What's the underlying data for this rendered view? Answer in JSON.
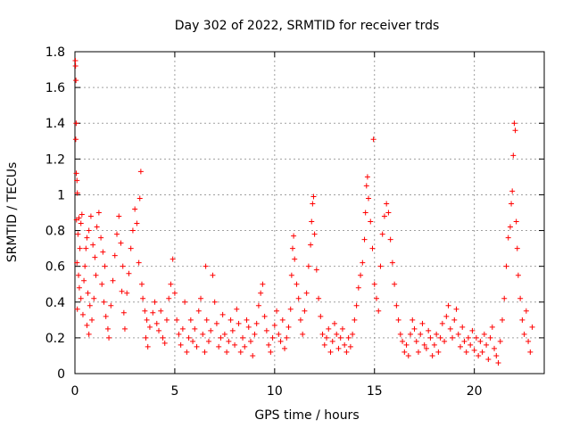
{
  "chart_data": {
    "type": "scatter",
    "title": "Day 302 of 2022, SRMTID for receiver trds",
    "xlabel": "GPS time / hours",
    "ylabel": "SRMTID / TECUs",
    "xlim": [
      0,
      23.5
    ],
    "ylim": [
      0,
      1.8
    ],
    "x_ticks": [
      0,
      5,
      10,
      15,
      20
    ],
    "x_tick_labels": [
      "0",
      "5",
      "10",
      "15",
      "20"
    ],
    "y_ticks": [
      0,
      0.2,
      0.4,
      0.6,
      0.8,
      1,
      1.2,
      1.4,
      1.6,
      1.8
    ],
    "y_tick_labels": [
      "0",
      "0.2",
      "0.4",
      "0.6",
      "0.8",
      "1",
      "1.2",
      "1.4",
      "1.6",
      "1.8"
    ],
    "grid": true,
    "marker": "+",
    "color": "#ff0000",
    "series": [
      {
        "name": "SRMTID",
        "points": [
          [
            0.02,
            1.75
          ],
          [
            0.03,
            1.72
          ],
          [
            0.05,
            1.64
          ],
          [
            0.06,
            1.4
          ],
          [
            0.04,
            1.31
          ],
          [
            0.07,
            1.12
          ],
          [
            0.1,
            1.08
          ],
          [
            0.12,
            1.01
          ],
          [
            0.08,
            0.86
          ],
          [
            0.2,
            0.87
          ],
          [
            0.3,
            0.84
          ],
          [
            0.35,
            0.89
          ],
          [
            0.15,
            0.78
          ],
          [
            0.25,
            0.7
          ],
          [
            0.1,
            0.62
          ],
          [
            0.18,
            0.55
          ],
          [
            0.22,
            0.48
          ],
          [
            0.3,
            0.42
          ],
          [
            0.12,
            0.36
          ],
          [
            0.4,
            0.33
          ],
          [
            0.45,
            0.52
          ],
          [
            0.5,
            0.6
          ],
          [
            0.55,
            0.7
          ],
          [
            0.6,
            0.76
          ],
          [
            0.7,
            0.8
          ],
          [
            0.8,
            0.88
          ],
          [
            0.9,
            0.72
          ],
          [
            1.0,
            0.65
          ],
          [
            0.65,
            0.45
          ],
          [
            0.75,
            0.38
          ],
          [
            0.6,
            0.27
          ],
          [
            0.7,
            0.22
          ],
          [
            0.85,
            0.3
          ],
          [
            0.95,
            0.42
          ],
          [
            1.05,
            0.55
          ],
          [
            1.1,
            0.82
          ],
          [
            1.2,
            0.9
          ],
          [
            1.3,
            0.76
          ],
          [
            1.4,
            0.68
          ],
          [
            1.5,
            0.6
          ],
          [
            1.35,
            0.5
          ],
          [
            1.45,
            0.4
          ],
          [
            1.55,
            0.32
          ],
          [
            1.65,
            0.25
          ],
          [
            1.7,
            0.2
          ],
          [
            1.8,
            0.38
          ],
          [
            1.9,
            0.52
          ],
          [
            2.0,
            0.66
          ],
          [
            2.1,
            0.78
          ],
          [
            2.2,
            0.88
          ],
          [
            2.3,
            0.73
          ],
          [
            2.4,
            0.6
          ],
          [
            2.35,
            0.46
          ],
          [
            2.45,
            0.34
          ],
          [
            2.5,
            0.25
          ],
          [
            2.6,
            0.45
          ],
          [
            2.7,
            0.56
          ],
          [
            2.8,
            0.7
          ],
          [
            2.9,
            0.8
          ],
          [
            3.0,
            0.92
          ],
          [
            3.1,
            0.84
          ],
          [
            3.2,
            0.62
          ],
          [
            3.25,
            0.98
          ],
          [
            3.3,
            1.13
          ],
          [
            3.35,
            0.5
          ],
          [
            3.4,
            0.42
          ],
          [
            3.5,
            0.35
          ],
          [
            3.6,
            0.3
          ],
          [
            3.55,
            0.2
          ],
          [
            3.65,
            0.15
          ],
          [
            3.75,
            0.26
          ],
          [
            3.9,
            0.34
          ],
          [
            4.0,
            0.4
          ],
          [
            4.1,
            0.28
          ],
          [
            4.2,
            0.24
          ],
          [
            4.3,
            0.35
          ],
          [
            4.4,
            0.2
          ],
          [
            4.5,
            0.17
          ],
          [
            4.6,
            0.3
          ],
          [
            4.7,
            0.42
          ],
          [
            4.8,
            0.5
          ],
          [
            4.9,
            0.64
          ],
          [
            5.0,
            0.45
          ],
          [
            5.1,
            0.3
          ],
          [
            5.2,
            0.22
          ],
          [
            5.3,
            0.16
          ],
          [
            5.4,
            0.25
          ],
          [
            5.5,
            0.4
          ],
          [
            5.6,
            0.12
          ],
          [
            5.7,
            0.2
          ],
          [
            5.8,
            0.3
          ],
          [
            5.9,
            0.18
          ],
          [
            6.0,
            0.25
          ],
          [
            6.1,
            0.15
          ],
          [
            6.2,
            0.35
          ],
          [
            6.3,
            0.42
          ],
          [
            6.4,
            0.22
          ],
          [
            6.5,
            0.12
          ],
          [
            6.55,
            0.6
          ],
          [
            6.6,
            0.3
          ],
          [
            6.7,
            0.18
          ],
          [
            6.8,
            0.24
          ],
          [
            6.9,
            0.55
          ],
          [
            7.0,
            0.4
          ],
          [
            7.1,
            0.28
          ],
          [
            7.2,
            0.15
          ],
          [
            7.3,
            0.2
          ],
          [
            7.4,
            0.33
          ],
          [
            7.5,
            0.22
          ],
          [
            7.6,
            0.12
          ],
          [
            7.7,
            0.18
          ],
          [
            7.8,
            0.3
          ],
          [
            7.9,
            0.24
          ],
          [
            8.0,
            0.16
          ],
          [
            8.1,
            0.36
          ],
          [
            8.2,
            0.28
          ],
          [
            8.3,
            0.12
          ],
          [
            8.4,
            0.2
          ],
          [
            8.5,
            0.15
          ],
          [
            8.6,
            0.3
          ],
          [
            8.7,
            0.26
          ],
          [
            8.8,
            0.18
          ],
          [
            8.9,
            0.1
          ],
          [
            9.0,
            0.22
          ],
          [
            9.1,
            0.28
          ],
          [
            9.2,
            0.38
          ],
          [
            9.3,
            0.45
          ],
          [
            9.4,
            0.5
          ],
          [
            9.5,
            0.32
          ],
          [
            9.6,
            0.24
          ],
          [
            9.7,
            0.16
          ],
          [
            9.8,
            0.12
          ],
          [
            9.9,
            0.2
          ],
          [
            10.0,
            0.27
          ],
          [
            10.1,
            0.35
          ],
          [
            10.2,
            0.22
          ],
          [
            10.3,
            0.18
          ],
          [
            10.4,
            0.3
          ],
          [
            10.5,
            0.14
          ],
          [
            10.6,
            0.2
          ],
          [
            10.7,
            0.26
          ],
          [
            10.8,
            0.36
          ],
          [
            10.85,
            0.55
          ],
          [
            10.9,
            0.7
          ],
          [
            10.95,
            0.77
          ],
          [
            11.0,
            0.64
          ],
          [
            11.1,
            0.5
          ],
          [
            11.2,
            0.42
          ],
          [
            11.3,
            0.3
          ],
          [
            11.4,
            0.22
          ],
          [
            11.5,
            0.35
          ],
          [
            11.6,
            0.45
          ],
          [
            11.7,
            0.6
          ],
          [
            11.8,
            0.72
          ],
          [
            11.85,
            0.85
          ],
          [
            11.9,
            0.95
          ],
          [
            11.95,
            0.99
          ],
          [
            12.0,
            0.78
          ],
          [
            12.1,
            0.58
          ],
          [
            12.2,
            0.42
          ],
          [
            12.3,
            0.32
          ],
          [
            12.4,
            0.22
          ],
          [
            12.5,
            0.16
          ],
          [
            12.6,
            0.2
          ],
          [
            12.7,
            0.25
          ],
          [
            12.8,
            0.12
          ],
          [
            12.9,
            0.18
          ],
          [
            13.0,
            0.28
          ],
          [
            13.1,
            0.22
          ],
          [
            13.2,
            0.14
          ],
          [
            13.3,
            0.2
          ],
          [
            13.4,
            0.25
          ],
          [
            13.5,
            0.16
          ],
          [
            13.6,
            0.12
          ],
          [
            13.7,
            0.2
          ],
          [
            13.8,
            0.15
          ],
          [
            13.9,
            0.22
          ],
          [
            14.0,
            0.3
          ],
          [
            14.1,
            0.38
          ],
          [
            14.2,
            0.48
          ],
          [
            14.3,
            0.55
          ],
          [
            14.4,
            0.62
          ],
          [
            14.5,
            0.75
          ],
          [
            14.55,
            0.9
          ],
          [
            14.6,
            1.05
          ],
          [
            14.65,
            1.1
          ],
          [
            14.7,
            0.98
          ],
          [
            14.8,
            0.85
          ],
          [
            14.9,
            0.7
          ],
          [
            14.95,
            1.31
          ],
          [
            15.0,
            0.5
          ],
          [
            15.1,
            0.42
          ],
          [
            15.2,
            0.35
          ],
          [
            15.3,
            0.6
          ],
          [
            15.4,
            0.78
          ],
          [
            15.5,
            0.88
          ],
          [
            15.6,
            0.95
          ],
          [
            15.7,
            0.9
          ],
          [
            15.8,
            0.75
          ],
          [
            15.9,
            0.62
          ],
          [
            16.0,
            0.5
          ],
          [
            16.1,
            0.38
          ],
          [
            16.2,
            0.3
          ],
          [
            16.3,
            0.22
          ],
          [
            16.4,
            0.18
          ],
          [
            16.5,
            0.12
          ],
          [
            16.6,
            0.16
          ],
          [
            16.7,
            0.1
          ],
          [
            16.8,
            0.22
          ],
          [
            16.9,
            0.3
          ],
          [
            17.0,
            0.25
          ],
          [
            17.1,
            0.18
          ],
          [
            17.2,
            0.12
          ],
          [
            17.3,
            0.22
          ],
          [
            17.4,
            0.28
          ],
          [
            17.5,
            0.16
          ],
          [
            17.6,
            0.14
          ],
          [
            17.7,
            0.24
          ],
          [
            17.8,
            0.2
          ],
          [
            17.9,
            0.1
          ],
          [
            18.0,
            0.16
          ],
          [
            18.1,
            0.22
          ],
          [
            18.2,
            0.12
          ],
          [
            18.3,
            0.2
          ],
          [
            18.4,
            0.28
          ],
          [
            18.5,
            0.18
          ],
          [
            18.6,
            0.32
          ],
          [
            18.7,
            0.38
          ],
          [
            18.8,
            0.25
          ],
          [
            18.9,
            0.2
          ],
          [
            19.0,
            0.3
          ],
          [
            19.1,
            0.36
          ],
          [
            19.2,
            0.22
          ],
          [
            19.3,
            0.15
          ],
          [
            19.4,
            0.26
          ],
          [
            19.5,
            0.18
          ],
          [
            19.6,
            0.12
          ],
          [
            19.7,
            0.2
          ],
          [
            19.8,
            0.16
          ],
          [
            19.9,
            0.24
          ],
          [
            20.0,
            0.13
          ],
          [
            20.1,
            0.2
          ],
          [
            20.2,
            0.1
          ],
          [
            20.3,
            0.18
          ],
          [
            20.4,
            0.12
          ],
          [
            20.5,
            0.22
          ],
          [
            20.6,
            0.16
          ],
          [
            20.7,
            0.08
          ],
          [
            20.8,
            0.2
          ],
          [
            20.9,
            0.26
          ],
          [
            21.0,
            0.14
          ],
          [
            21.1,
            0.1
          ],
          [
            21.2,
            0.06
          ],
          [
            21.3,
            0.18
          ],
          [
            21.4,
            0.3
          ],
          [
            21.5,
            0.42
          ],
          [
            21.6,
            0.6
          ],
          [
            21.7,
            0.76
          ],
          [
            21.8,
            0.82
          ],
          [
            21.85,
            0.95
          ],
          [
            21.9,
            1.02
          ],
          [
            21.95,
            1.22
          ],
          [
            22.0,
            1.4
          ],
          [
            22.05,
            1.36
          ],
          [
            22.1,
            0.85
          ],
          [
            22.15,
            0.7
          ],
          [
            22.2,
            0.55
          ],
          [
            22.3,
            0.42
          ],
          [
            22.4,
            0.3
          ],
          [
            22.5,
            0.22
          ],
          [
            22.6,
            0.35
          ],
          [
            22.7,
            0.18
          ],
          [
            22.8,
            0.12
          ],
          [
            22.9,
            0.26
          ]
        ]
      }
    ]
  }
}
